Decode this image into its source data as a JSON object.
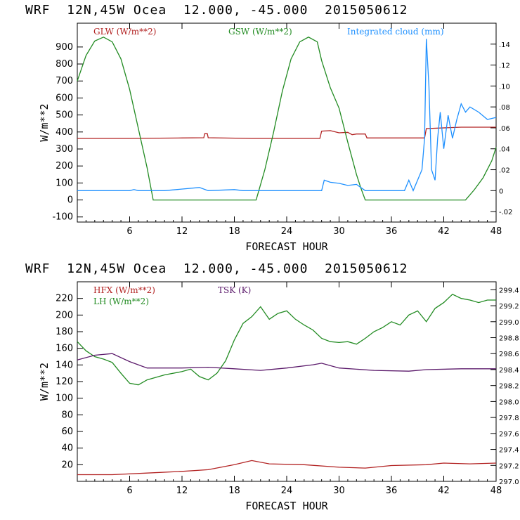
{
  "header": {
    "top_title": "WRF  12N,45W Ocea  12.000, -45.000  2015050612",
    "bottom_title": "WRF  12N,45W Ocea  12.000, -45.000  2015050612"
  },
  "chart_data": [
    {
      "type": "line",
      "xlabel": "FORECAST HOUR",
      "ylabel": "W/m**2",
      "xlim": [
        0,
        48
      ],
      "ylim": [
        -130,
        1040
      ],
      "y2lim": [
        -0.03,
        0.16
      ],
      "x_ticks": [
        "6",
        "12",
        "18",
        "24",
        "30",
        "36",
        "42",
        "48"
      ],
      "y_ticks": [
        "-100",
        "0",
        "100",
        "200",
        "300",
        "400",
        "500",
        "600",
        "700",
        "800",
        "900"
      ],
      "y2_ticks": [
        "-.02",
        "0",
        ".02",
        ".04",
        ".06",
        ".08",
        ".10",
        ".12",
        ".14"
      ],
      "grid": false,
      "legend_position": "top",
      "series": [
        {
          "name": "GLW (W/m**2)",
          "axis": "left",
          "color": "#b22222",
          "points": [
            [
              0,
              362
            ],
            [
              6,
              362
            ],
            [
              12,
              365
            ],
            [
              14.5,
              366
            ],
            [
              14.6,
              390
            ],
            [
              14.9,
              390
            ],
            [
              15,
              366
            ],
            [
              20,
              362
            ],
            [
              27.8,
              362
            ],
            [
              28,
              405
            ],
            [
              29,
              408
            ],
            [
              30,
              395
            ],
            [
              31,
              398
            ],
            [
              31.5,
              384
            ],
            [
              32,
              388
            ],
            [
              33,
              388
            ],
            [
              33.2,
              365
            ],
            [
              36,
              365
            ],
            [
              39.8,
              365
            ],
            [
              40,
              420
            ],
            [
              44,
              428
            ],
            [
              48,
              428
            ]
          ]
        },
        {
          "name": "GSW (W/m**2)",
          "axis": "left",
          "color": "#228b22",
          "points": [
            [
              0,
              700
            ],
            [
              1,
              850
            ],
            [
              2,
              935
            ],
            [
              3,
              958
            ],
            [
              4,
              930
            ],
            [
              5,
              830
            ],
            [
              6,
              650
            ],
            [
              7,
              420
            ],
            [
              8,
              190
            ],
            [
              8.7,
              0
            ],
            [
              20.5,
              0
            ],
            [
              21.5,
              180
            ],
            [
              22.5,
              400
            ],
            [
              23.5,
              640
            ],
            [
              24.5,
              830
            ],
            [
              25.5,
              930
            ],
            [
              26.5,
              958
            ],
            [
              27.5,
              930
            ],
            [
              28,
              820
            ],
            [
              29,
              660
            ],
            [
              30,
              540
            ],
            [
              31,
              340
            ],
            [
              32,
              150
            ],
            [
              32.5,
              70
            ],
            [
              33,
              0
            ],
            [
              44.5,
              0
            ],
            [
              45.5,
              60
            ],
            [
              46.5,
              130
            ],
            [
              47.5,
              230
            ],
            [
              48,
              310
            ]
          ]
        },
        {
          "name": "Integrated cloud (mm)",
          "axis": "right",
          "color": "#1e90ff",
          "points": [
            [
              0,
              0
            ],
            [
              6,
              0
            ],
            [
              6.5,
              0.001
            ],
            [
              7,
              0
            ],
            [
              10,
              0
            ],
            [
              14,
              0.003
            ],
            [
              15,
              0
            ],
            [
              18,
              0.001
            ],
            [
              19,
              0
            ],
            [
              28,
              0
            ],
            [
              28.3,
              0.01
            ],
            [
              29,
              0.008
            ],
            [
              30,
              0.007
            ],
            [
              31,
              0.005
            ],
            [
              32,
              0.006
            ],
            [
              33,
              0
            ],
            [
              37.5,
              0
            ],
            [
              38,
              0.01
            ],
            [
              38.5,
              0
            ],
            [
              39.5,
              0.02
            ],
            [
              39.8,
              0.05
            ],
            [
              40,
              0.145
            ],
            [
              40.3,
              0.1
            ],
            [
              40.6,
              0.02
            ],
            [
              41,
              0.01
            ],
            [
              41.3,
              0.05
            ],
            [
              41.6,
              0.075
            ],
            [
              42,
              0.04
            ],
            [
              42.5,
              0.072
            ],
            [
              43,
              0.05
            ],
            [
              43.5,
              0.068
            ],
            [
              44,
              0.083
            ],
            [
              44.5,
              0.075
            ],
            [
              45,
              0.08
            ],
            [
              46,
              0.075
            ],
            [
              47,
              0.068
            ],
            [
              48,
              0.07
            ]
          ]
        }
      ]
    },
    {
      "type": "line",
      "xlabel": "FORECAST HOUR",
      "ylabel": "W/m**2",
      "xlim": [
        0,
        48
      ],
      "ylim": [
        0,
        240
      ],
      "y2lim": [
        297.0,
        299.5
      ],
      "x_ticks": [
        "6",
        "12",
        "18",
        "24",
        "30",
        "36",
        "42",
        "48"
      ],
      "y_ticks": [
        "20",
        "40",
        "60",
        "80",
        "100",
        "120",
        "140",
        "160",
        "180",
        "200",
        "220"
      ],
      "y2_ticks": [
        "297.0",
        "297.2",
        "297.4",
        "297.6",
        "297.8",
        "298.0",
        "298.2",
        "298.4",
        "298.6",
        "298.8",
        "299.0",
        "299.2",
        "299.4"
      ],
      "grid": false,
      "legend_position": "top-left",
      "series": [
        {
          "name": "HFX (W/m**2)",
          "axis": "left",
          "color": "#b22222",
          "points": [
            [
              0,
              8
            ],
            [
              4,
              8
            ],
            [
              8,
              10
            ],
            [
              12,
              12
            ],
            [
              15,
              14
            ],
            [
              18,
              20
            ],
            [
              20,
              25
            ],
            [
              22,
              21
            ],
            [
              26,
              20
            ],
            [
              30,
              17
            ],
            [
              33,
              16
            ],
            [
              36,
              19
            ],
            [
              40,
              20
            ],
            [
              42,
              22
            ],
            [
              45,
              21
            ],
            [
              48,
              22
            ]
          ]
        },
        {
          "name": "LH (W/m**2)",
          "axis": "left",
          "color": "#228b22",
          "points": [
            [
              0,
              168
            ],
            [
              1,
              157
            ],
            [
              2,
              150
            ],
            [
              3,
              147
            ],
            [
              4,
              143
            ],
            [
              5,
              130
            ],
            [
              6,
              118
            ],
            [
              7,
              116
            ],
            [
              8,
              122
            ],
            [
              10,
              128
            ],
            [
              12,
              132
            ],
            [
              13,
              135
            ],
            [
              14,
              126
            ],
            [
              15,
              122
            ],
            [
              16,
              130
            ],
            [
              17,
              145
            ],
            [
              18,
              170
            ],
            [
              19,
              190
            ],
            [
              20,
              198
            ],
            [
              21,
              210
            ],
            [
              22,
              195
            ],
            [
              23,
              202
            ],
            [
              24,
              205
            ],
            [
              25,
              195
            ],
            [
              26,
              188
            ],
            [
              27,
              182
            ],
            [
              28,
              172
            ],
            [
              29,
              168
            ],
            [
              30,
              167
            ],
            [
              31,
              168
            ],
            [
              32,
              165
            ],
            [
              33,
              172
            ],
            [
              34,
              180
            ],
            [
              35,
              185
            ],
            [
              36,
              192
            ],
            [
              37,
              188
            ],
            [
              38,
              200
            ],
            [
              39,
              205
            ],
            [
              40,
              192
            ],
            [
              41,
              208
            ],
            [
              42,
              215
            ],
            [
              43,
              225
            ],
            [
              44,
              220
            ],
            [
              45,
              218
            ],
            [
              46,
              215
            ],
            [
              47,
              218
            ],
            [
              48,
              218
            ]
          ]
        },
        {
          "name": "TSK (K)",
          "axis": "right",
          "color": "#5b1a6b",
          "points": [
            [
              0,
              298.52
            ],
            [
              2,
              298.58
            ],
            [
              4,
              298.6
            ],
            [
              6,
              298.5
            ],
            [
              8,
              298.42
            ],
            [
              12,
              298.42
            ],
            [
              15,
              298.43
            ],
            [
              18,
              298.41
            ],
            [
              21,
              298.39
            ],
            [
              24,
              298.42
            ],
            [
              27,
              298.46
            ],
            [
              28,
              298.48
            ],
            [
              30,
              298.42
            ],
            [
              34,
              298.39
            ],
            [
              38,
              298.38
            ],
            [
              40,
              298.4
            ],
            [
              44,
              298.41
            ],
            [
              48,
              298.41
            ]
          ]
        }
      ]
    }
  ]
}
